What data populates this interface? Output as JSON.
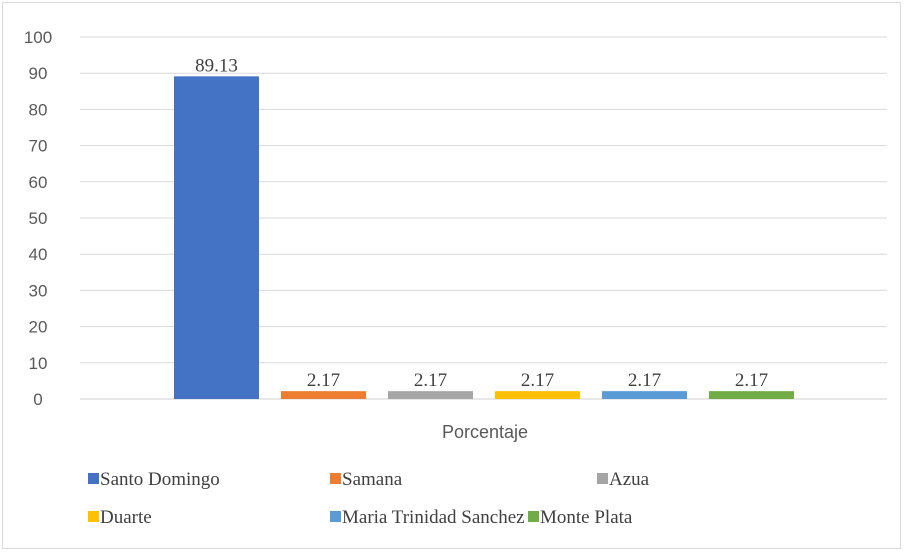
{
  "chart_data": {
    "type": "bar",
    "title": "",
    "xlabel": "",
    "ylabel": "",
    "ylim": [
      0,
      100
    ],
    "yticks": [
      0,
      10,
      20,
      30,
      40,
      50,
      60,
      70,
      80,
      90,
      100
    ],
    "grid": true,
    "categories": [
      "Porcentaje"
    ],
    "series": [
      {
        "name": "Santo Domingo",
        "values": [
          89.13
        ],
        "label": "89.13",
        "color": "#4472c4"
      },
      {
        "name": "Samana",
        "values": [
          2.17
        ],
        "label": "2.17",
        "color": "#ed7d31"
      },
      {
        "name": "Azua",
        "values": [
          2.17
        ],
        "label": "2.17",
        "color": "#a5a5a5"
      },
      {
        "name": "Duarte",
        "values": [
          2.17
        ],
        "label": "2.17",
        "color": "#ffc000"
      },
      {
        "name": "Maria Trinidad Sanchez",
        "values": [
          2.17
        ],
        "label": "2.17",
        "color": "#5b9bd5"
      },
      {
        "name": "Monte Plata",
        "values": [
          2.17
        ],
        "label": "2.17",
        "color": "#70ad47"
      }
    ],
    "legend_position": "bottom"
  }
}
